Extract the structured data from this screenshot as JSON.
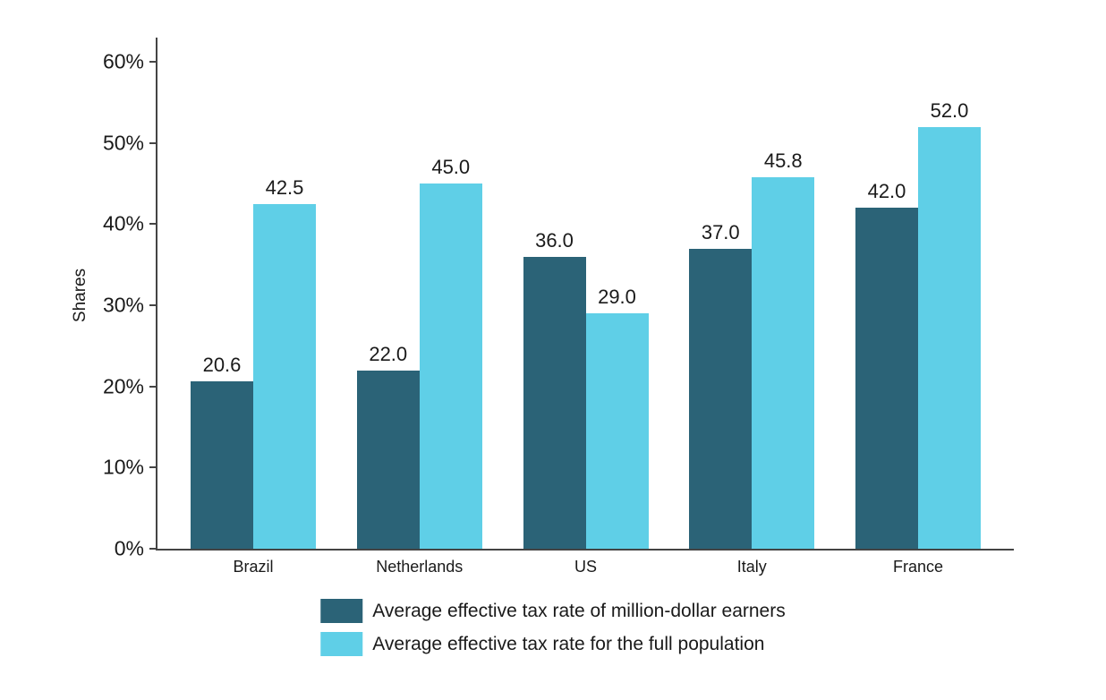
{
  "figure": {
    "background": "#ffffff"
  },
  "chart_data": {
    "type": "bar",
    "title": "",
    "xlabel": "",
    "ylabel": "Shares",
    "categories": [
      "Brazil",
      "Netherlands",
      "US",
      "Italy",
      "France"
    ],
    "series": [
      {
        "name": "Average effective tax rate of million-dollar earners",
        "color": "#2B6377",
        "values": [
          20.6,
          22.0,
          36.0,
          37.0,
          42.0
        ]
      },
      {
        "name": "Average effective tax rate for the full population",
        "color": "#5FCFE7",
        "values": [
          42.5,
          45.0,
          29.0,
          45.8,
          52.0
        ]
      }
    ],
    "value_labels_visible": true,
    "value_label_format": ".1f",
    "y_tick_values": [
      0,
      10,
      20,
      30,
      40,
      50,
      60
    ],
    "y_tick_labels": [
      "0%",
      "10%",
      "20%",
      "30%",
      "40%",
      "50%",
      "60%"
    ],
    "ylim": [
      0,
      63
    ],
    "grid": false,
    "legend_position": "bottom-center",
    "axis_color": "#444444",
    "text_color": "#1a1a1a"
  }
}
